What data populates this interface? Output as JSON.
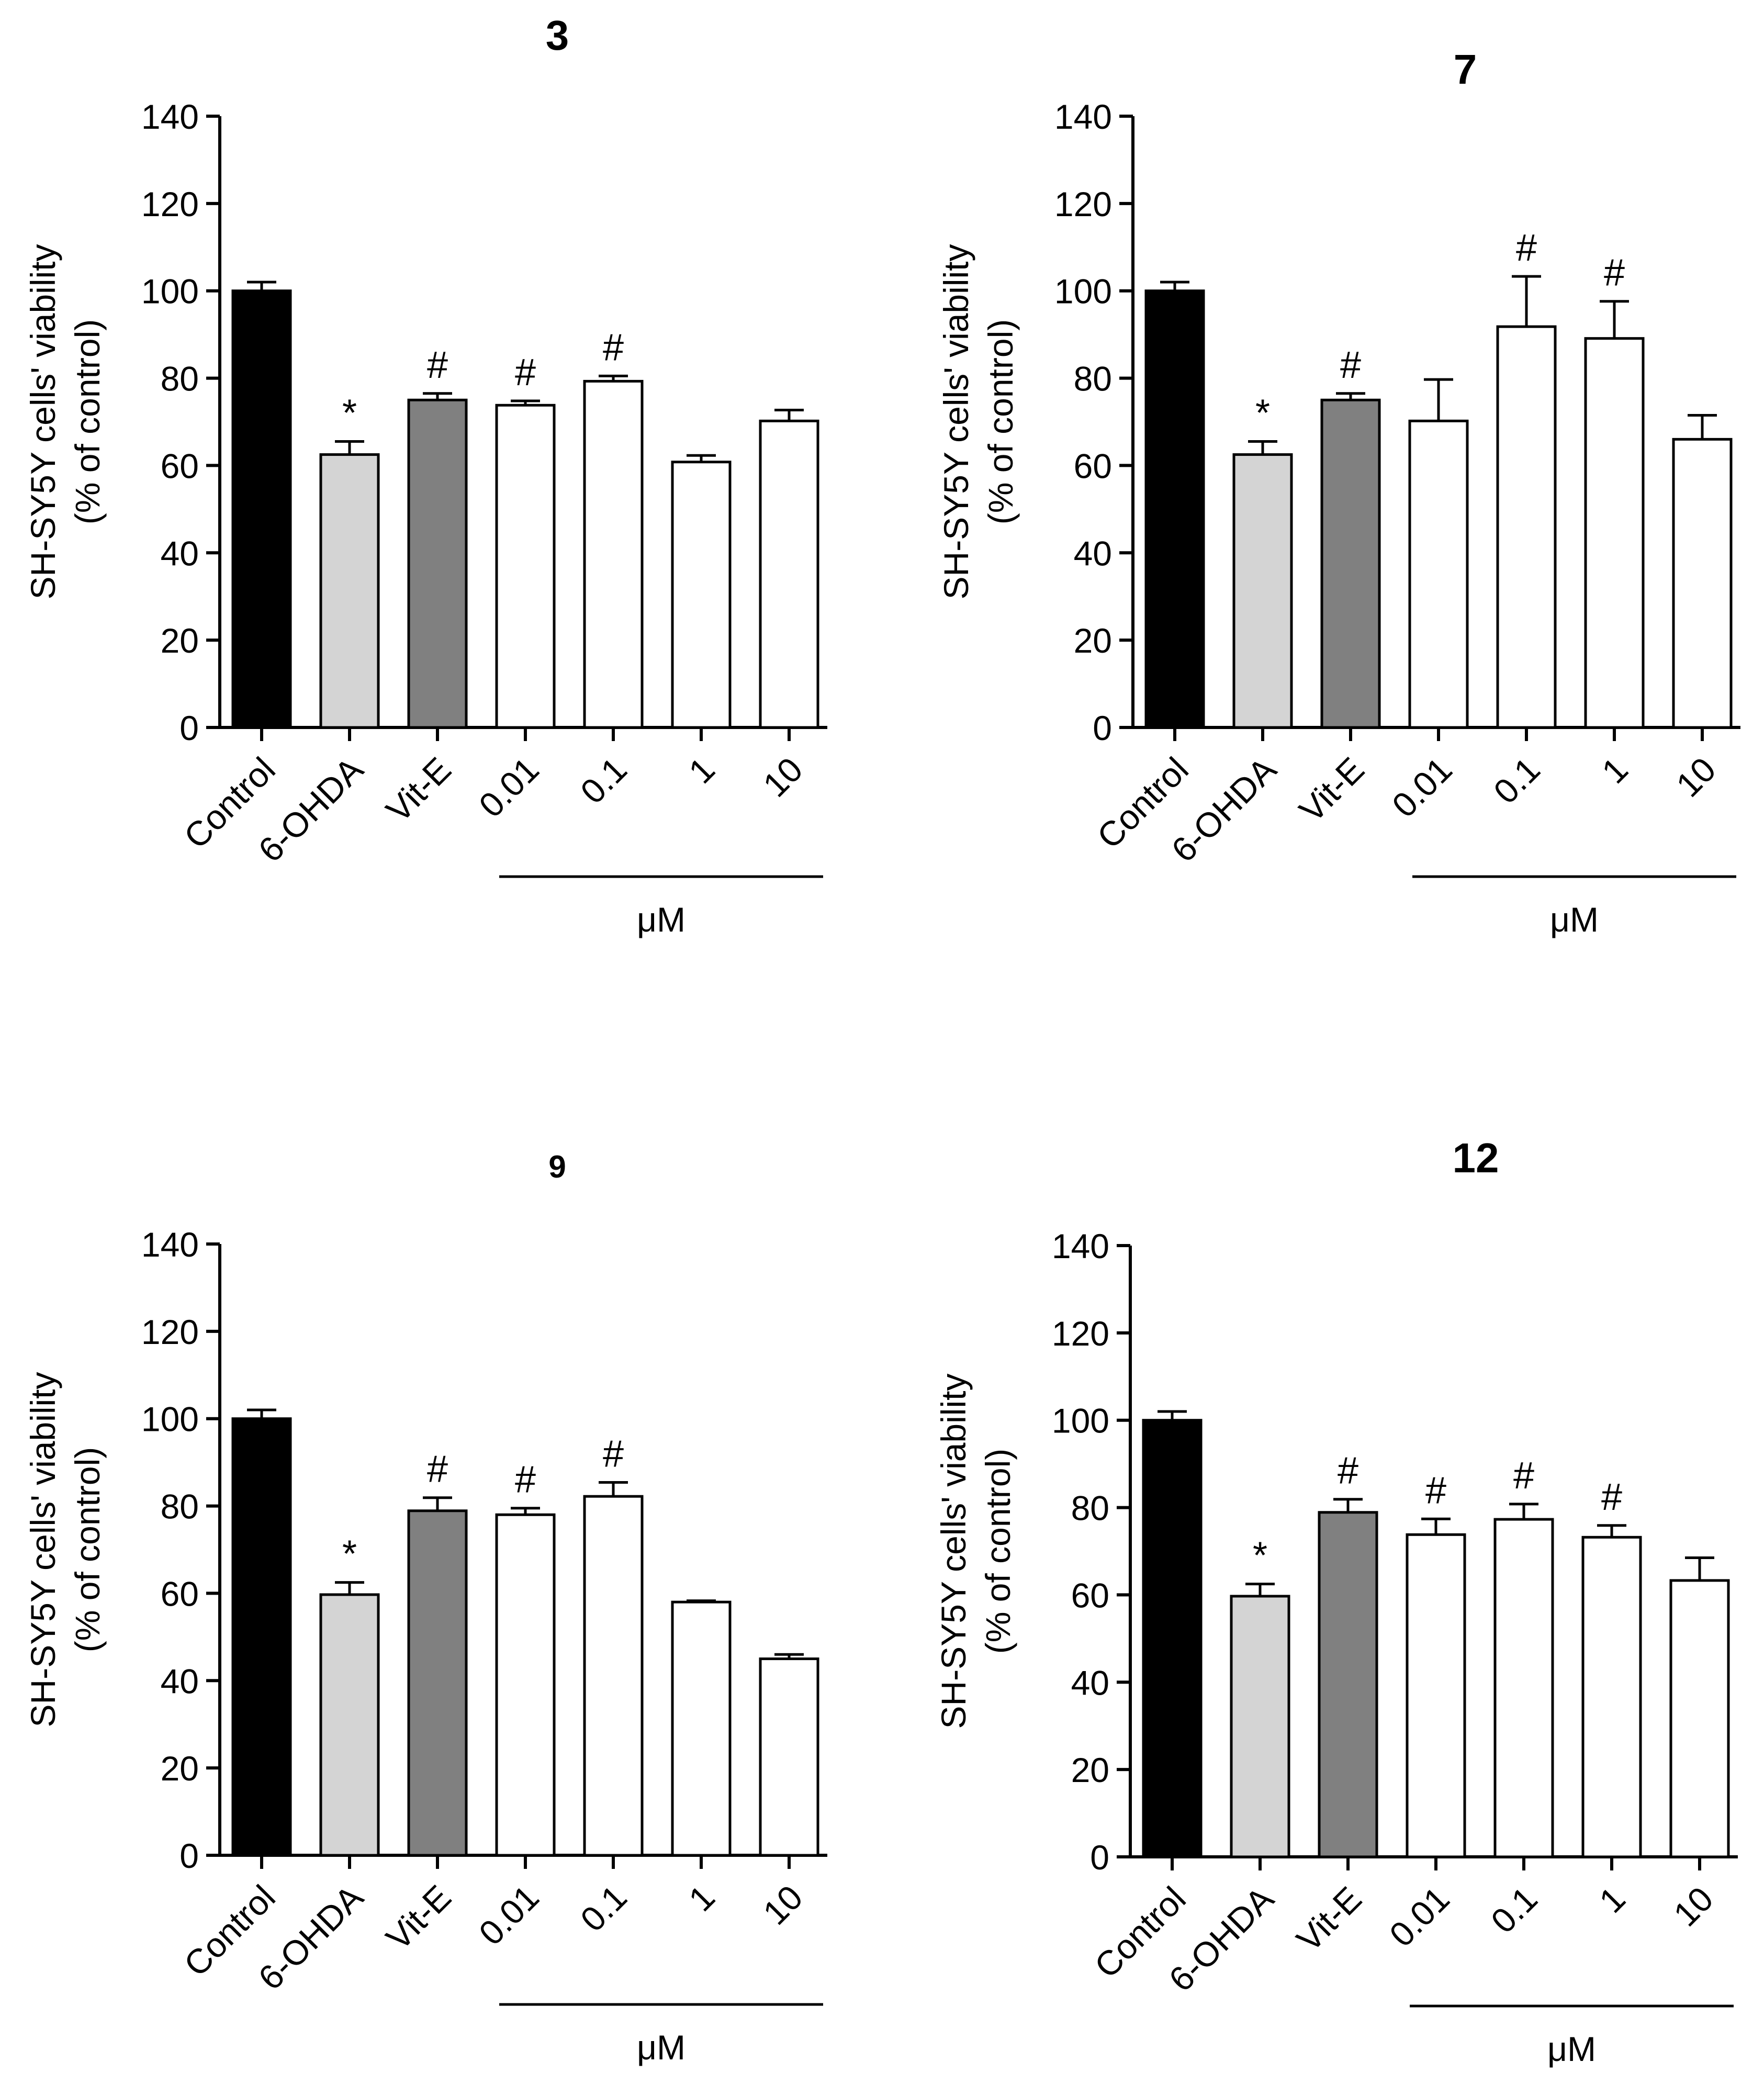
{
  "figure": {
    "panel_count": 4
  },
  "style": {
    "axis_color": "#000000"
  },
  "chart_data": [
    {
      "type": "bar",
      "title": "3",
      "ylabel": "SH-SY5Y cells' viability",
      "ylabel2": "(% of control)",
      "xlabel": "μM",
      "ylim": [
        0,
        140
      ],
      "yticks": [
        0,
        20,
        40,
        60,
        80,
        100,
        120,
        140
      ],
      "categories": [
        "Control",
        "6-OHDA",
        "Vit-E",
        "0.01",
        "0.1",
        "1",
        "10"
      ],
      "values": [
        100,
        62.5,
        75,
        73.8,
        79.3,
        60.8,
        70.2
      ],
      "errors": [
        2,
        3,
        1.5,
        1,
        1.2,
        1.5,
        2.5
      ],
      "annotations": [
        "",
        "*",
        "#",
        "#",
        "#",
        "",
        ""
      ],
      "colors": [
        "#000000",
        "#d4d4d4",
        "#808080",
        "#ffffff",
        "#ffffff",
        "#ffffff",
        "#ffffff"
      ],
      "concentration_group": {
        "label": "μM",
        "from_index": 3,
        "to_index": 6
      }
    },
    {
      "type": "bar",
      "title": "7",
      "ylabel": "SH-SY5Y cells' viability",
      "ylabel2": "(% of control)",
      "xlabel": "μM",
      "ylim": [
        0,
        140
      ],
      "yticks": [
        0,
        20,
        40,
        60,
        80,
        100,
        120,
        140
      ],
      "categories": [
        "Control",
        "6-OHDA",
        "Vit-E",
        "0.01",
        "0.1",
        "1",
        "10"
      ],
      "values": [
        100,
        62.5,
        75,
        70.2,
        91.8,
        89.1,
        66
      ],
      "errors": [
        2,
        3,
        1.5,
        9.5,
        11.5,
        8.5,
        5.5
      ],
      "annotations": [
        "",
        "*",
        "#",
        "",
        "#",
        "#",
        ""
      ],
      "colors": [
        "#000000",
        "#d4d4d4",
        "#808080",
        "#ffffff",
        "#ffffff",
        "#ffffff",
        "#ffffff"
      ],
      "concentration_group": {
        "label": "μM",
        "from_index": 3,
        "to_index": 6
      }
    },
    {
      "type": "bar",
      "title": "9",
      "ylabel": "SH-SY5Y cells' viability",
      "ylabel2": "(% of control)",
      "xlabel": "μM",
      "ylim": [
        0,
        140
      ],
      "yticks": [
        0,
        20,
        40,
        60,
        80,
        100,
        120,
        140
      ],
      "categories": [
        "Control",
        "6-OHDA",
        "Vit-E",
        "0.01",
        "0.1",
        "1",
        "10"
      ],
      "values": [
        100,
        59.7,
        78.9,
        78,
        82.2,
        58,
        45
      ],
      "errors": [
        2,
        2.8,
        3,
        1.5,
        3.2,
        0.3,
        1
      ],
      "annotations": [
        "",
        "*",
        "#",
        "#",
        "#",
        "",
        ""
      ],
      "colors": [
        "#000000",
        "#d4d4d4",
        "#808080",
        "#ffffff",
        "#ffffff",
        "#ffffff",
        "#ffffff"
      ],
      "concentration_group": {
        "label": "μM",
        "from_index": 3,
        "to_index": 6
      }
    },
    {
      "type": "bar",
      "title": "12",
      "ylabel": "SH-SY5Y cells' viability",
      "ylabel2": "(% of control)",
      "xlabel": "μM",
      "ylim": [
        0,
        140
      ],
      "yticks": [
        0,
        20,
        40,
        60,
        80,
        100,
        120,
        140
      ],
      "categories": [
        "Control",
        "6-OHDA",
        "Vit-E",
        "0.01",
        "0.1",
        "1",
        "10"
      ],
      "values": [
        100,
        59.7,
        78.9,
        73.8,
        77.3,
        73.2,
        63.3
      ],
      "errors": [
        2,
        2.8,
        3,
        3.6,
        3.5,
        2.7,
        5.2
      ],
      "annotations": [
        "",
        "*",
        "#",
        "#",
        "#",
        "#",
        ""
      ],
      "colors": [
        "#000000",
        "#d4d4d4",
        "#808080",
        "#ffffff",
        "#ffffff",
        "#ffffff",
        "#ffffff"
      ],
      "concentration_group": {
        "label": "μM",
        "from_index": 3,
        "to_index": 6
      }
    }
  ]
}
